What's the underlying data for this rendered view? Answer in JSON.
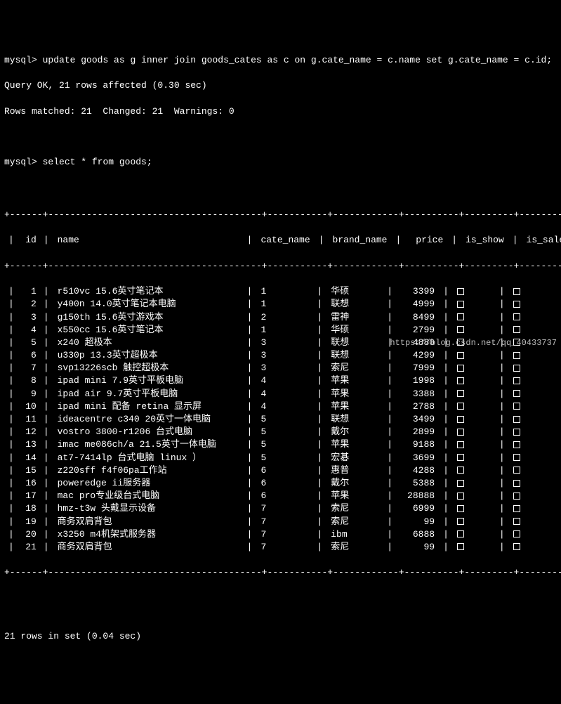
{
  "terminal": {
    "prompt": "mysql>",
    "update_cmd": "update goods as g inner join goods_cates as c on g.cate_name = c.name set g.cate_name = c.id;",
    "query_ok": "Query OK, 21 rows affected (0.30 sec)",
    "rows_matched": "Rows matched: 21  Changed: 21  Warnings: 0",
    "select_cmd": "select * from goods;",
    "rows_in_set": "21 rows in set (0.04 sec)"
  },
  "table": {
    "columns": [
      "id",
      "name",
      "cate_name",
      "brand_name",
      "price",
      "is_show",
      "is_saleoff"
    ],
    "rows": [
      {
        "id": "1",
        "name": "r510vc 15.6英寸笔记本",
        "cate_name": "1",
        "brand_name": "华硕",
        "price": "3399"
      },
      {
        "id": "2",
        "name": "y400n 14.0英寸笔记本电脑",
        "cate_name": "1",
        "brand_name": "联想",
        "price": "4999"
      },
      {
        "id": "3",
        "name": "g150th 15.6英寸游戏本",
        "cate_name": "2",
        "brand_name": "雷神",
        "price": "8499"
      },
      {
        "id": "4",
        "name": "x550cc 15.6英寸笔记本",
        "cate_name": "1",
        "brand_name": "华硕",
        "price": "2799"
      },
      {
        "id": "5",
        "name": "x240 超极本",
        "cate_name": "3",
        "brand_name": "联想",
        "price": "4880"
      },
      {
        "id": "6",
        "name": "u330p 13.3英寸超极本",
        "cate_name": "3",
        "brand_name": "联想",
        "price": "4299"
      },
      {
        "id": "7",
        "name": "svp13226scb 触控超极本",
        "cate_name": "3",
        "brand_name": "索尼",
        "price": "7999"
      },
      {
        "id": "8",
        "name": "ipad mini 7.9英寸平板电脑",
        "cate_name": "4",
        "brand_name": "苹果",
        "price": "1998"
      },
      {
        "id": "9",
        "name": "ipad air 9.7英寸平板电脑",
        "cate_name": "4",
        "brand_name": "苹果",
        "price": "3388"
      },
      {
        "id": "10",
        "name": "ipad mini 配备 retina 显示屏",
        "cate_name": "4",
        "brand_name": "苹果",
        "price": "2788"
      },
      {
        "id": "11",
        "name": "ideacentre c340 20英寸一体电脑",
        "cate_name": "5",
        "brand_name": "联想",
        "price": "3499"
      },
      {
        "id": "12",
        "name": "vostro 3800-r1206 台式电脑",
        "cate_name": "5",
        "brand_name": "戴尔",
        "price": "2899"
      },
      {
        "id": "13",
        "name": "imac me086ch/a 21.5英寸一体电脑",
        "cate_name": "5",
        "brand_name": "苹果",
        "price": "9188"
      },
      {
        "id": "14",
        "name": "at7-7414lp 台式电脑 linux ）",
        "cate_name": "5",
        "brand_name": "宏碁",
        "price": "3699"
      },
      {
        "id": "15",
        "name": "z220sff f4f06pa工作站",
        "cate_name": "6",
        "brand_name": "惠普",
        "price": "4288"
      },
      {
        "id": "16",
        "name": "poweredge ii服务器",
        "cate_name": "6",
        "brand_name": "戴尔",
        "price": "5388"
      },
      {
        "id": "17",
        "name": "mac pro专业级台式电脑",
        "cate_name": "6",
        "brand_name": "苹果",
        "price": "28888"
      },
      {
        "id": "18",
        "name": "hmz-t3w 头戴显示设备",
        "cate_name": "7",
        "brand_name": "索尼",
        "price": "6999"
      },
      {
        "id": "19",
        "name": "商务双肩背包",
        "cate_name": "7",
        "brand_name": "索尼",
        "price": "99"
      },
      {
        "id": "20",
        "name": "x3250 m4机架式服务器",
        "cate_name": "7",
        "brand_name": "ibm",
        "price": "6888"
      },
      {
        "id": "21",
        "name": "商务双肩背包",
        "cate_name": "7",
        "brand_name": "索尼",
        "price": "99"
      }
    ],
    "hline": "+------+---------------------------------------+-----------+------------+----------+---------+------------+"
  },
  "watermark": "https://blog.csdn.net/qq_40433737"
}
